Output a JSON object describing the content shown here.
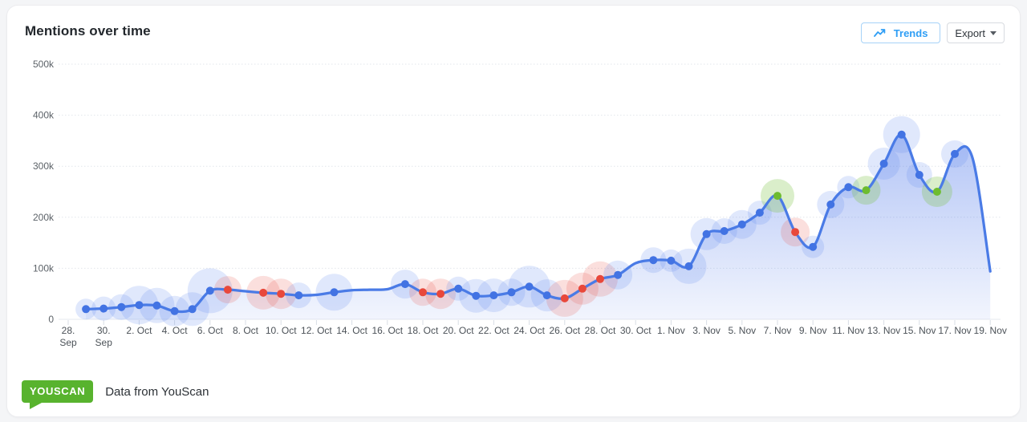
{
  "header": {
    "title": "Mentions over time",
    "trends_label": "Trends",
    "export_label": "Export"
  },
  "footer": {
    "logo_text": "YOUSCAN",
    "caption": "Data from YouScan"
  },
  "colors": {
    "line": "#4a7be6",
    "fill_top": "rgba(88,127,235,0.50)",
    "fill_bottom": "rgba(88,127,235,0)",
    "dot_blue": "#4273e3",
    "dot_red": "#e8483b",
    "dot_green": "#6dbc2f",
    "halo_blue": "rgba(102,140,238,0.20)",
    "halo_red": "rgba(232,80,64,0.18)",
    "halo_green": "rgba(123,193,63,0.28)",
    "grid_line": "#e2e6eb",
    "axis_line": "#e5e9ef",
    "tick": "#d9dee5",
    "y_label": "#5c6268",
    "x_label": "#4c5258",
    "trends_accent": "#2f9ef5",
    "logo_green": "#58b32e"
  },
  "chart_data": {
    "type": "line",
    "title": "Mentions over time",
    "xlabel": "",
    "ylabel": "",
    "legend": "none",
    "grid": "horizontal dotted",
    "ylim": [
      0,
      500000
    ],
    "ytick_values": [
      0,
      100000,
      200000,
      300000,
      400000,
      500000
    ],
    "ytick_labels": [
      "0",
      "100k",
      "200k",
      "300k",
      "400k",
      "500k"
    ],
    "x_tick_every_days": 2,
    "x_tick_labels": [
      "28. Sep",
      "30. Sep",
      "2. Oct",
      "4. Oct",
      "6. Oct",
      "8. Oct",
      "10. Oct",
      "12. Oct",
      "14. Oct",
      "16. Oct",
      "18. Oct",
      "20. Oct",
      "22. Oct",
      "24. Oct",
      "26. Oct",
      "28. Oct",
      "30. Oct",
      "1. Nov",
      "3. Nov",
      "5. Nov",
      "7. Nov",
      "9. Nov",
      "11. Nov",
      "13. Nov",
      "15. Nov",
      "17. Nov",
      "19. Nov"
    ],
    "points": [
      {
        "date": "29. Sep",
        "day": 1,
        "value": 20000,
        "marker": "blue",
        "halo_r": 13
      },
      {
        "date": "30. Sep",
        "day": 2,
        "value": 21000,
        "marker": "blue",
        "halo_r": 15
      },
      {
        "date": "1. Oct",
        "day": 3,
        "value": 24000,
        "marker": "blue",
        "halo_r": 16
      },
      {
        "date": "2. Oct",
        "day": 4,
        "value": 28000,
        "marker": "blue",
        "halo_r": 24
      },
      {
        "date": "3. Oct",
        "day": 5,
        "value": 27000,
        "marker": "blue",
        "halo_r": 22
      },
      {
        "date": "4. Oct",
        "day": 6,
        "value": 16000,
        "marker": "blue",
        "halo_r": 19
      },
      {
        "date": "5. Oct",
        "day": 7,
        "value": 20000,
        "marker": "blue",
        "halo_r": 21
      },
      {
        "date": "6. Oct",
        "day": 8,
        "value": 56000,
        "marker": "blue",
        "halo_r": 28
      },
      {
        "date": "7. Oct",
        "day": 9,
        "value": 58000,
        "marker": "red",
        "halo_r": 17
      },
      {
        "date": "8. Oct",
        "day": 10,
        "value": 55000,
        "marker": "none",
        "halo_r": 0
      },
      {
        "date": "9. Oct",
        "day": 11,
        "value": 52000,
        "marker": "red",
        "halo_r": 21
      },
      {
        "date": "10. Oct",
        "day": 12,
        "value": 50000,
        "marker": "red",
        "halo_r": 19
      },
      {
        "date": "11. Oct",
        "day": 13,
        "value": 47000,
        "marker": "blue",
        "halo_r": 16
      },
      {
        "date": "12. Oct",
        "day": 14,
        "value": 48000,
        "marker": "none",
        "halo_r": 0
      },
      {
        "date": "13. Oct",
        "day": 15,
        "value": 53000,
        "marker": "blue",
        "halo_r": 23
      },
      {
        "date": "14. Oct",
        "day": 16,
        "value": 57000,
        "marker": "none",
        "halo_r": 0
      },
      {
        "date": "15. Oct",
        "day": 17,
        "value": 58000,
        "marker": "none",
        "halo_r": 0
      },
      {
        "date": "16. Oct",
        "day": 18,
        "value": 59000,
        "marker": "none",
        "halo_r": 0
      },
      {
        "date": "17. Oct",
        "day": 19,
        "value": 69000,
        "marker": "blue",
        "halo_r": 18
      },
      {
        "date": "18. Oct",
        "day": 20,
        "value": 53000,
        "marker": "red",
        "halo_r": 17
      },
      {
        "date": "19. Oct",
        "day": 21,
        "value": 50000,
        "marker": "red",
        "halo_r": 19
      },
      {
        "date": "20. Oct",
        "day": 22,
        "value": 60000,
        "marker": "blue",
        "halo_r": 15
      },
      {
        "date": "21. Oct",
        "day": 23,
        "value": 46000,
        "marker": "blue",
        "halo_r": 21
      },
      {
        "date": "22. Oct",
        "day": 24,
        "value": 47000,
        "marker": "blue",
        "halo_r": 21
      },
      {
        "date": "23. Oct",
        "day": 25,
        "value": 53000,
        "marker": "blue",
        "halo_r": 17
      },
      {
        "date": "24. Oct",
        "day": 26,
        "value": 64000,
        "marker": "blue",
        "halo_r": 26
      },
      {
        "date": "25. Oct",
        "day": 27,
        "value": 47000,
        "marker": "blue",
        "halo_r": 20
      },
      {
        "date": "26. Oct",
        "day": 28,
        "value": 41000,
        "marker": "red",
        "halo_r": 23
      },
      {
        "date": "27. Oct",
        "day": 29,
        "value": 60000,
        "marker": "red",
        "halo_r": 20
      },
      {
        "date": "28. Oct",
        "day": 30,
        "value": 79000,
        "marker": "red",
        "halo_r": 22
      },
      {
        "date": "29. Oct",
        "day": 31,
        "value": 87000,
        "marker": "blue",
        "halo_r": 18
      },
      {
        "date": "30. Oct",
        "day": 32,
        "value": 110000,
        "marker": "none",
        "halo_r": 0
      },
      {
        "date": "31. Oct",
        "day": 33,
        "value": 116000,
        "marker": "blue",
        "halo_r": 16
      },
      {
        "date": "1. Nov",
        "day": 34,
        "value": 115000,
        "marker": "blue",
        "halo_r": 14
      },
      {
        "date": "2. Nov",
        "day": 35,
        "value": 104000,
        "marker": "blue",
        "halo_r": 22
      },
      {
        "date": "3. Nov",
        "day": 36,
        "value": 167000,
        "marker": "blue",
        "halo_r": 20
      },
      {
        "date": "4. Nov",
        "day": 37,
        "value": 173000,
        "marker": "blue",
        "halo_r": 16
      },
      {
        "date": "5. Nov",
        "day": 38,
        "value": 186000,
        "marker": "blue",
        "halo_r": 18
      },
      {
        "date": "6. Nov",
        "day": 39,
        "value": 209000,
        "marker": "blue",
        "halo_r": 15
      },
      {
        "date": "7. Nov",
        "day": 40,
        "value": 242000,
        "marker": "green",
        "halo_r": 21
      },
      {
        "date": "8. Nov",
        "day": 41,
        "value": 171000,
        "marker": "red",
        "halo_r": 18
      },
      {
        "date": "9. Nov",
        "day": 42,
        "value": 142000,
        "marker": "blue",
        "halo_r": 14
      },
      {
        "date": "10. Nov",
        "day": 43,
        "value": 225000,
        "marker": "blue",
        "halo_r": 17
      },
      {
        "date": "11. Nov",
        "day": 44,
        "value": 259000,
        "marker": "blue",
        "halo_r": 14
      },
      {
        "date": "12. Nov",
        "day": 45,
        "value": 253000,
        "marker": "green",
        "halo_r": 18
      },
      {
        "date": "13. Nov",
        "day": 46,
        "value": 305000,
        "marker": "blue",
        "halo_r": 20
      },
      {
        "date": "14. Nov",
        "day": 47,
        "value": 362000,
        "marker": "blue",
        "halo_r": 23
      },
      {
        "date": "15. Nov",
        "day": 48,
        "value": 283000,
        "marker": "blue",
        "halo_r": 16
      },
      {
        "date": "16. Nov",
        "day": 49,
        "value": 250000,
        "marker": "green",
        "halo_r": 19
      },
      {
        "date": "17. Nov",
        "day": 50,
        "value": 324000,
        "marker": "blue",
        "halo_r": 17
      },
      {
        "date": "18. Nov",
        "day": 51,
        "value": 316000,
        "marker": "none",
        "halo_r": 0
      },
      {
        "date": "19. Nov",
        "day": 52,
        "value": 94000,
        "marker": "none",
        "halo_r": 0
      }
    ]
  }
}
